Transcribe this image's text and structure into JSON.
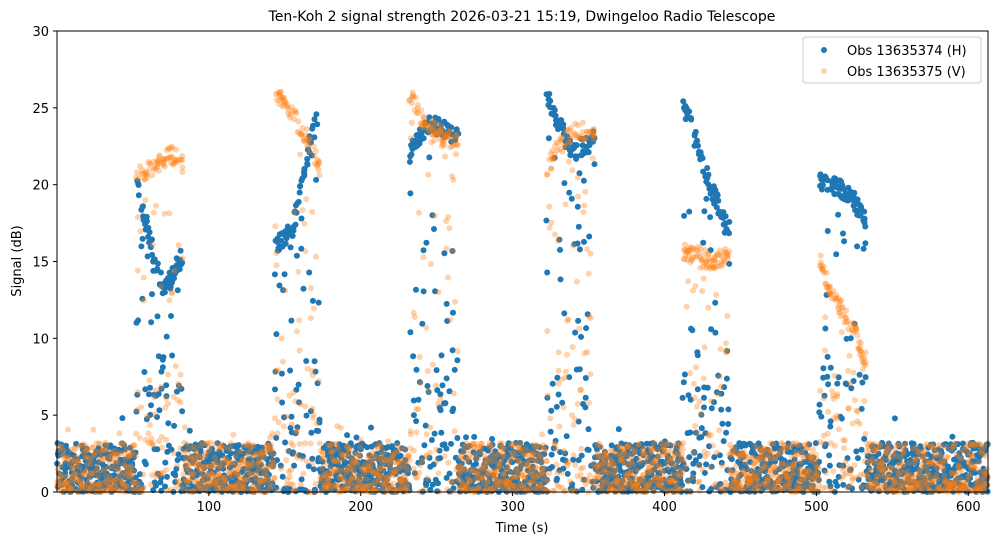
{
  "chart_data": {
    "type": "scatter",
    "title": "Ten-Koh 2 signal strength 2026-03-21 15:19, Dwingeloo Radio Telescope",
    "xlabel": "Time (s)",
    "ylabel": "Signal (dB)",
    "xlim": [
      0,
      613
    ],
    "ylim": [
      0,
      30
    ],
    "xticks": [
      100,
      200,
      300,
      400,
      500,
      600
    ],
    "xtick_labels": [
      "100",
      "200",
      "300",
      "400",
      "500",
      "600"
    ],
    "yticks": [
      0,
      5,
      10,
      15,
      20,
      25,
      30
    ],
    "ytick_labels": [
      "0",
      "5",
      "10",
      "15",
      "20",
      "25",
      "30"
    ],
    "grid": false,
    "legend_position": "top-right",
    "noise_floor_db": [
      0,
      3
    ],
    "series": [
      {
        "name": "Obs 13635374 (H)",
        "color": "#1f77b4",
        "alpha": 1.0,
        "passes": [
          {
            "t": [
              52,
              60,
              70,
              83
            ],
            "level": [
              20.5,
              17,
              13,
              15.5
            ]
          },
          {
            "t": [
              143,
              155,
              165,
              173
            ],
            "level": [
              16,
              17,
              22,
              25
            ]
          },
          {
            "t": [
              232,
              245,
              255,
              264
            ],
            "level": [
              22,
              24,
              23.5,
              23
            ]
          },
          {
            "t": [
              322,
              330,
              340,
              354
            ],
            "level": [
              26,
              24,
              22,
              23
            ]
          },
          {
            "t": [
              412,
              420,
              430,
              443
            ],
            "level": [
              25.5,
              23,
              20,
              17
            ]
          },
          {
            "t": [
              502,
              515,
              525,
              533
            ],
            "level": [
              20.3,
              19.8,
              19,
              17.5
            ]
          }
        ]
      },
      {
        "name": "Obs 13635375 (V)",
        "color": "#ff7f0e",
        "alpha": 0.35,
        "passes": [
          {
            "t": [
              52,
              62,
              75,
              83
            ],
            "level": [
              20.5,
              21,
              22,
              21.3
            ]
          },
          {
            "t": [
              143,
              155,
              165,
              173
            ],
            "level": [
              26,
              24.5,
              23,
              21
            ]
          },
          {
            "t": [
              232,
              242,
              252,
              264
            ],
            "level": [
              26,
              24,
              23.3,
              22.8
            ]
          },
          {
            "t": [
              322,
              330,
              342,
              354
            ],
            "level": [
              21,
              22.5,
              23.5,
              23.5
            ]
          },
          {
            "t": [
              412,
              420,
              430,
              443
            ],
            "level": [
              15.5,
              15.5,
              15,
              15.5
            ]
          },
          {
            "t": [
              502,
              512,
              522,
              533
            ],
            "level": [
              15,
              12.5,
              11,
              8.5
            ]
          }
        ]
      }
    ]
  }
}
